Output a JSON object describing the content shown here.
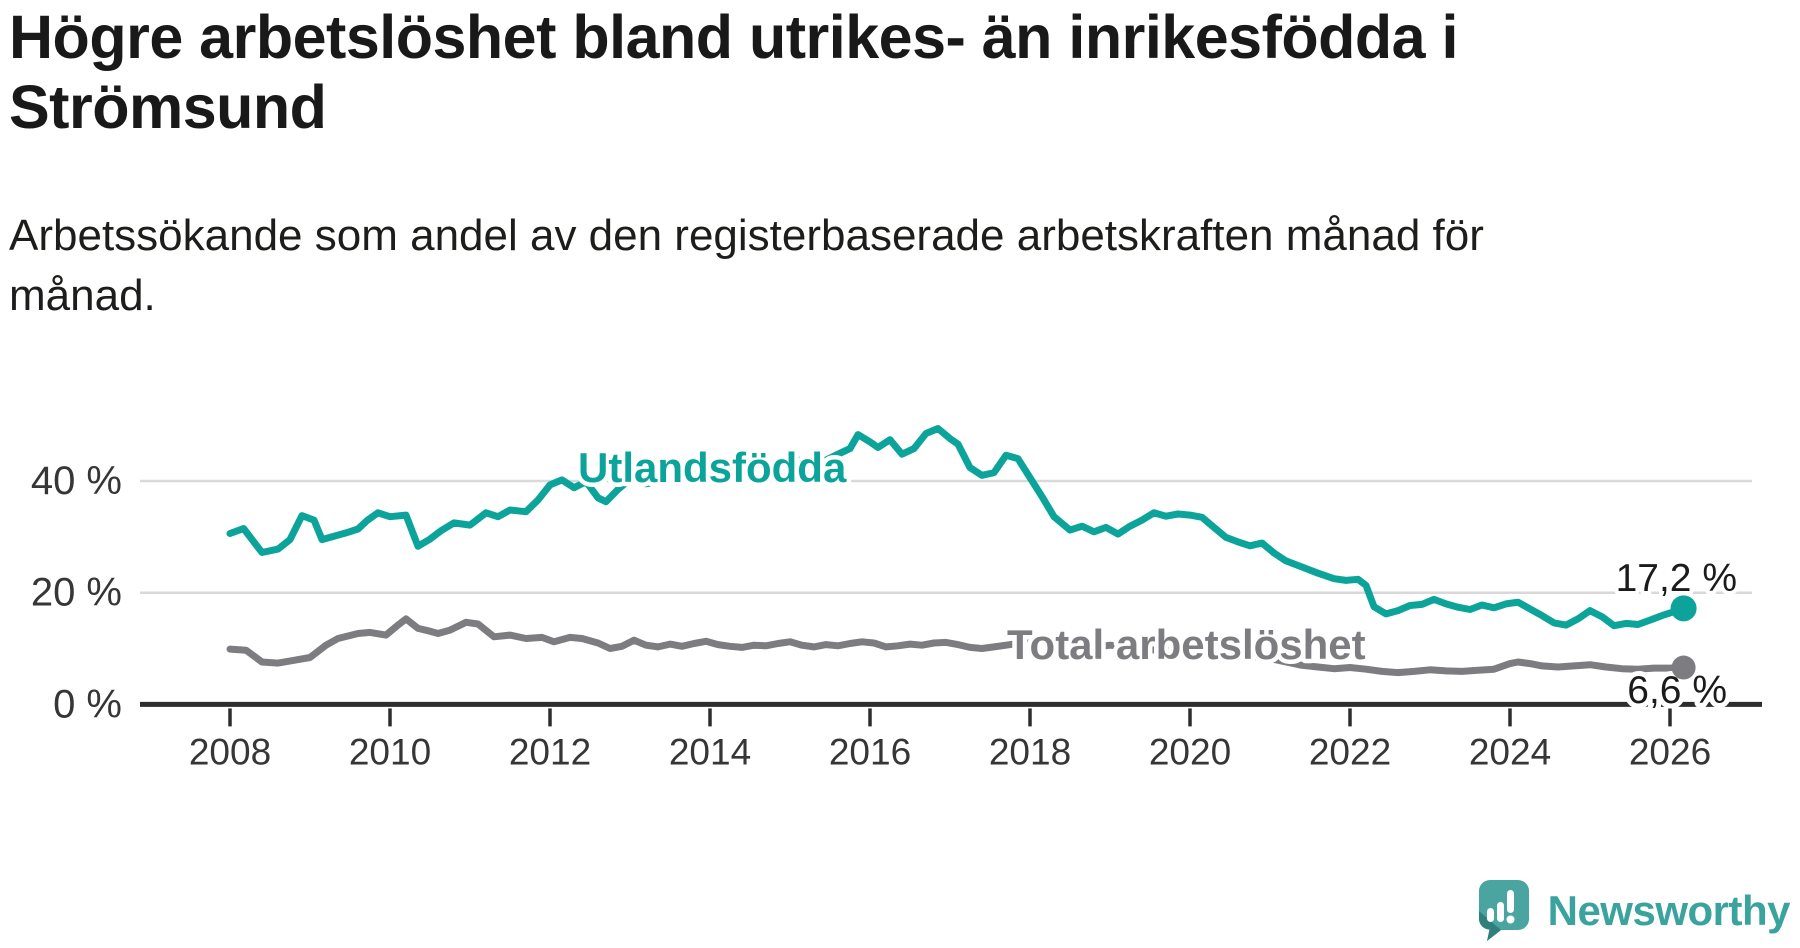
{
  "header": {
    "title_lines": [
      "Högre arbetslöshet bland utrikes- än inrikesfödda i",
      "Strömsund"
    ],
    "subtitle_lines": [
      "Arbetssökande som andel av den registerbaserade arbetskraften månad för",
      "månad."
    ]
  },
  "colors": {
    "teal": "#0ca49a",
    "gray": "#7d7d81",
    "axis": "#2d2d2d",
    "grid": "#d9d9d9",
    "tick_text": "#363636",
    "value_text": "#1b1b1b",
    "logo_bubble": "#4aa5a0",
    "logo_fold": "#2f7f7c",
    "logo_text": "#3ba39d"
  },
  "chart_data": {
    "type": "line",
    "title": "Högre arbetslöshet bland utrikes- än inrikesfödda i Strömsund",
    "subtitle": "Arbetssökande som andel av den registerbaserade arbetskraften månad för månad.",
    "xlabel": "",
    "ylabel": "",
    "xlim": [
      2007.3,
      2027.1
    ],
    "ylim": [
      0,
      52
    ],
    "grid": "horizontal",
    "legend_position": "inline-labels",
    "x_ticks": [
      2008,
      2010,
      2012,
      2014,
      2016,
      2018,
      2020,
      2022,
      2024,
      2026
    ],
    "y_ticks": [
      {
        "value": 0,
        "label": "0 %"
      },
      {
        "value": 20,
        "label": "20 %"
      },
      {
        "value": 40,
        "label": "40 %"
      }
    ],
    "series": [
      {
        "name": "Utlandsfödda",
        "color": "#0ca49a",
        "end_label": "17,2 %",
        "end_value": 17.2,
        "points": [
          [
            2008.0,
            30.6
          ],
          [
            2008.17,
            31.5
          ],
          [
            2008.4,
            27.2
          ],
          [
            2008.6,
            27.8
          ],
          [
            2008.75,
            29.5
          ],
          [
            2008.9,
            33.8
          ],
          [
            2009.05,
            33.0
          ],
          [
            2009.15,
            29.5
          ],
          [
            2009.3,
            30.1
          ],
          [
            2009.45,
            30.7
          ],
          [
            2009.6,
            31.4
          ],
          [
            2009.72,
            33.0
          ],
          [
            2009.85,
            34.3
          ],
          [
            2010.0,
            33.6
          ],
          [
            2010.2,
            33.9
          ],
          [
            2010.35,
            28.3
          ],
          [
            2010.5,
            29.6
          ],
          [
            2010.65,
            31.2
          ],
          [
            2010.8,
            32.5
          ],
          [
            2011.0,
            32.1
          ],
          [
            2011.2,
            34.3
          ],
          [
            2011.35,
            33.6
          ],
          [
            2011.5,
            34.8
          ],
          [
            2011.7,
            34.5
          ],
          [
            2011.85,
            36.6
          ],
          [
            2012.0,
            39.3
          ],
          [
            2012.15,
            40.2
          ],
          [
            2012.3,
            38.8
          ],
          [
            2012.45,
            39.9
          ],
          [
            2012.6,
            37.0
          ],
          [
            2012.7,
            36.3
          ],
          [
            2012.85,
            38.5
          ],
          [
            2013.0,
            40.3
          ],
          [
            2013.2,
            39.5
          ],
          [
            2013.4,
            40.0
          ],
          [
            2013.6,
            41.0
          ],
          [
            2013.8,
            41.0
          ],
          [
            2014.0,
            42.3
          ],
          [
            2014.2,
            41.6
          ],
          [
            2014.4,
            42.0
          ],
          [
            2014.6,
            43.3
          ],
          [
            2014.8,
            43.1
          ],
          [
            2015.0,
            44.0
          ],
          [
            2015.2,
            43.5
          ],
          [
            2015.4,
            43.4
          ],
          [
            2015.6,
            44.8
          ],
          [
            2015.75,
            45.8
          ],
          [
            2015.85,
            48.3
          ],
          [
            2016.0,
            47.0
          ],
          [
            2016.1,
            46.0
          ],
          [
            2016.25,
            47.4
          ],
          [
            2016.4,
            44.8
          ],
          [
            2016.55,
            45.8
          ],
          [
            2016.7,
            48.5
          ],
          [
            2016.85,
            49.4
          ],
          [
            2017.0,
            47.6
          ],
          [
            2017.1,
            46.6
          ],
          [
            2017.25,
            42.4
          ],
          [
            2017.4,
            41.0
          ],
          [
            2017.55,
            41.5
          ],
          [
            2017.7,
            44.6
          ],
          [
            2017.85,
            44.0
          ],
          [
            2018.0,
            40.6
          ],
          [
            2018.15,
            37.2
          ],
          [
            2018.3,
            33.6
          ],
          [
            2018.5,
            31.2
          ],
          [
            2018.65,
            31.9
          ],
          [
            2018.8,
            30.9
          ],
          [
            2018.95,
            31.7
          ],
          [
            2019.1,
            30.5
          ],
          [
            2019.25,
            31.9
          ],
          [
            2019.4,
            33.0
          ],
          [
            2019.55,
            34.3
          ],
          [
            2019.7,
            33.7
          ],
          [
            2019.85,
            34.1
          ],
          [
            2020.0,
            33.9
          ],
          [
            2020.15,
            33.5
          ],
          [
            2020.3,
            31.7
          ],
          [
            2020.45,
            29.9
          ],
          [
            2020.6,
            29.1
          ],
          [
            2020.75,
            28.4
          ],
          [
            2020.9,
            28.9
          ],
          [
            2021.05,
            27.1
          ],
          [
            2021.2,
            25.7
          ],
          [
            2021.4,
            24.6
          ],
          [
            2021.6,
            23.5
          ],
          [
            2021.8,
            22.5
          ],
          [
            2021.95,
            22.2
          ],
          [
            2022.1,
            22.4
          ],
          [
            2022.2,
            21.3
          ],
          [
            2022.3,
            17.5
          ],
          [
            2022.45,
            16.2
          ],
          [
            2022.6,
            16.8
          ],
          [
            2022.75,
            17.7
          ],
          [
            2022.9,
            17.9
          ],
          [
            2023.05,
            18.8
          ],
          [
            2023.2,
            18.0
          ],
          [
            2023.35,
            17.4
          ],
          [
            2023.5,
            17.0
          ],
          [
            2023.65,
            17.8
          ],
          [
            2023.8,
            17.3
          ],
          [
            2023.95,
            18.0
          ],
          [
            2024.1,
            18.3
          ],
          [
            2024.25,
            17.1
          ],
          [
            2024.4,
            15.9
          ],
          [
            2024.55,
            14.6
          ],
          [
            2024.7,
            14.2
          ],
          [
            2024.85,
            15.3
          ],
          [
            2025.0,
            16.8
          ],
          [
            2025.15,
            15.7
          ],
          [
            2025.3,
            14.1
          ],
          [
            2025.45,
            14.5
          ],
          [
            2025.6,
            14.3
          ],
          [
            2025.75,
            15.1
          ],
          [
            2025.9,
            15.9
          ],
          [
            2026.05,
            16.6
          ],
          [
            2026.17,
            17.2
          ]
        ]
      },
      {
        "name": "Total arbetslöshet",
        "color": "#7d7d81",
        "end_label": "6,6 %",
        "end_value": 6.6,
        "points": [
          [
            2008.0,
            9.9
          ],
          [
            2008.2,
            9.7
          ],
          [
            2008.4,
            7.6
          ],
          [
            2008.6,
            7.4
          ],
          [
            2008.8,
            7.9
          ],
          [
            2009.0,
            8.4
          ],
          [
            2009.2,
            10.6
          ],
          [
            2009.35,
            11.8
          ],
          [
            2009.6,
            12.7
          ],
          [
            2009.75,
            12.9
          ],
          [
            2009.95,
            12.4
          ],
          [
            2010.1,
            14.2
          ],
          [
            2010.2,
            15.3
          ],
          [
            2010.35,
            13.6
          ],
          [
            2010.5,
            13.1
          ],
          [
            2010.6,
            12.7
          ],
          [
            2010.75,
            13.3
          ],
          [
            2010.95,
            14.7
          ],
          [
            2011.1,
            14.4
          ],
          [
            2011.3,
            12.1
          ],
          [
            2011.5,
            12.4
          ],
          [
            2011.7,
            11.8
          ],
          [
            2011.9,
            12.0
          ],
          [
            2012.05,
            11.2
          ],
          [
            2012.25,
            12.0
          ],
          [
            2012.4,
            11.8
          ],
          [
            2012.6,
            11.0
          ],
          [
            2012.75,
            10.0
          ],
          [
            2012.9,
            10.4
          ],
          [
            2013.05,
            11.5
          ],
          [
            2013.2,
            10.6
          ],
          [
            2013.35,
            10.3
          ],
          [
            2013.5,
            10.8
          ],
          [
            2013.65,
            10.4
          ],
          [
            2013.8,
            10.9
          ],
          [
            2013.95,
            11.3
          ],
          [
            2014.1,
            10.7
          ],
          [
            2014.25,
            10.4
          ],
          [
            2014.4,
            10.2
          ],
          [
            2014.55,
            10.6
          ],
          [
            2014.7,
            10.5
          ],
          [
            2014.85,
            10.9
          ],
          [
            2015.0,
            11.2
          ],
          [
            2015.15,
            10.6
          ],
          [
            2015.3,
            10.3
          ],
          [
            2015.45,
            10.7
          ],
          [
            2015.6,
            10.5
          ],
          [
            2015.75,
            10.9
          ],
          [
            2015.9,
            11.2
          ],
          [
            2016.05,
            11.0
          ],
          [
            2016.2,
            10.3
          ],
          [
            2016.35,
            10.5
          ],
          [
            2016.5,
            10.8
          ],
          [
            2016.65,
            10.6
          ],
          [
            2016.8,
            11.0
          ],
          [
            2016.95,
            11.1
          ],
          [
            2017.1,
            10.7
          ],
          [
            2017.25,
            10.2
          ],
          [
            2017.4,
            10.0
          ],
          [
            2017.55,
            10.3
          ],
          [
            2017.7,
            10.6
          ],
          [
            2017.85,
            10.9
          ],
          [
            2018.0,
            11.3
          ],
          [
            2018.15,
            11.4
          ],
          [
            2018.3,
            10.9
          ],
          [
            2018.45,
            10.6
          ],
          [
            2018.6,
            10.4
          ],
          [
            2018.8,
            10.2
          ],
          [
            2019.0,
            10.6
          ],
          [
            2019.2,
            10.3
          ],
          [
            2019.4,
            9.9
          ],
          [
            2019.6,
            9.7
          ],
          [
            2019.8,
            9.9
          ],
          [
            2020.0,
            10.2
          ],
          [
            2020.2,
            10.4
          ],
          [
            2020.4,
            9.8
          ],
          [
            2020.6,
            9.2
          ],
          [
            2020.8,
            8.6
          ],
          [
            2021.0,
            8.2
          ],
          [
            2021.2,
            7.6
          ],
          [
            2021.4,
            7.0
          ],
          [
            2021.6,
            6.7
          ],
          [
            2021.8,
            6.4
          ],
          [
            2022.0,
            6.6
          ],
          [
            2022.2,
            6.3
          ],
          [
            2022.4,
            5.9
          ],
          [
            2022.6,
            5.7
          ],
          [
            2022.8,
            5.9
          ],
          [
            2023.0,
            6.2
          ],
          [
            2023.2,
            6.0
          ],
          [
            2023.4,
            5.9
          ],
          [
            2023.6,
            6.1
          ],
          [
            2023.8,
            6.3
          ],
          [
            2024.0,
            7.3
          ],
          [
            2024.1,
            7.6
          ],
          [
            2024.25,
            7.3
          ],
          [
            2024.4,
            6.9
          ],
          [
            2024.6,
            6.7
          ],
          [
            2024.8,
            6.9
          ],
          [
            2025.0,
            7.1
          ],
          [
            2025.2,
            6.7
          ],
          [
            2025.4,
            6.4
          ],
          [
            2025.6,
            6.3
          ],
          [
            2025.8,
            6.5
          ],
          [
            2026.0,
            6.5
          ],
          [
            2026.17,
            6.6
          ]
        ]
      }
    ]
  },
  "logo": {
    "text": "Newsworthy"
  }
}
